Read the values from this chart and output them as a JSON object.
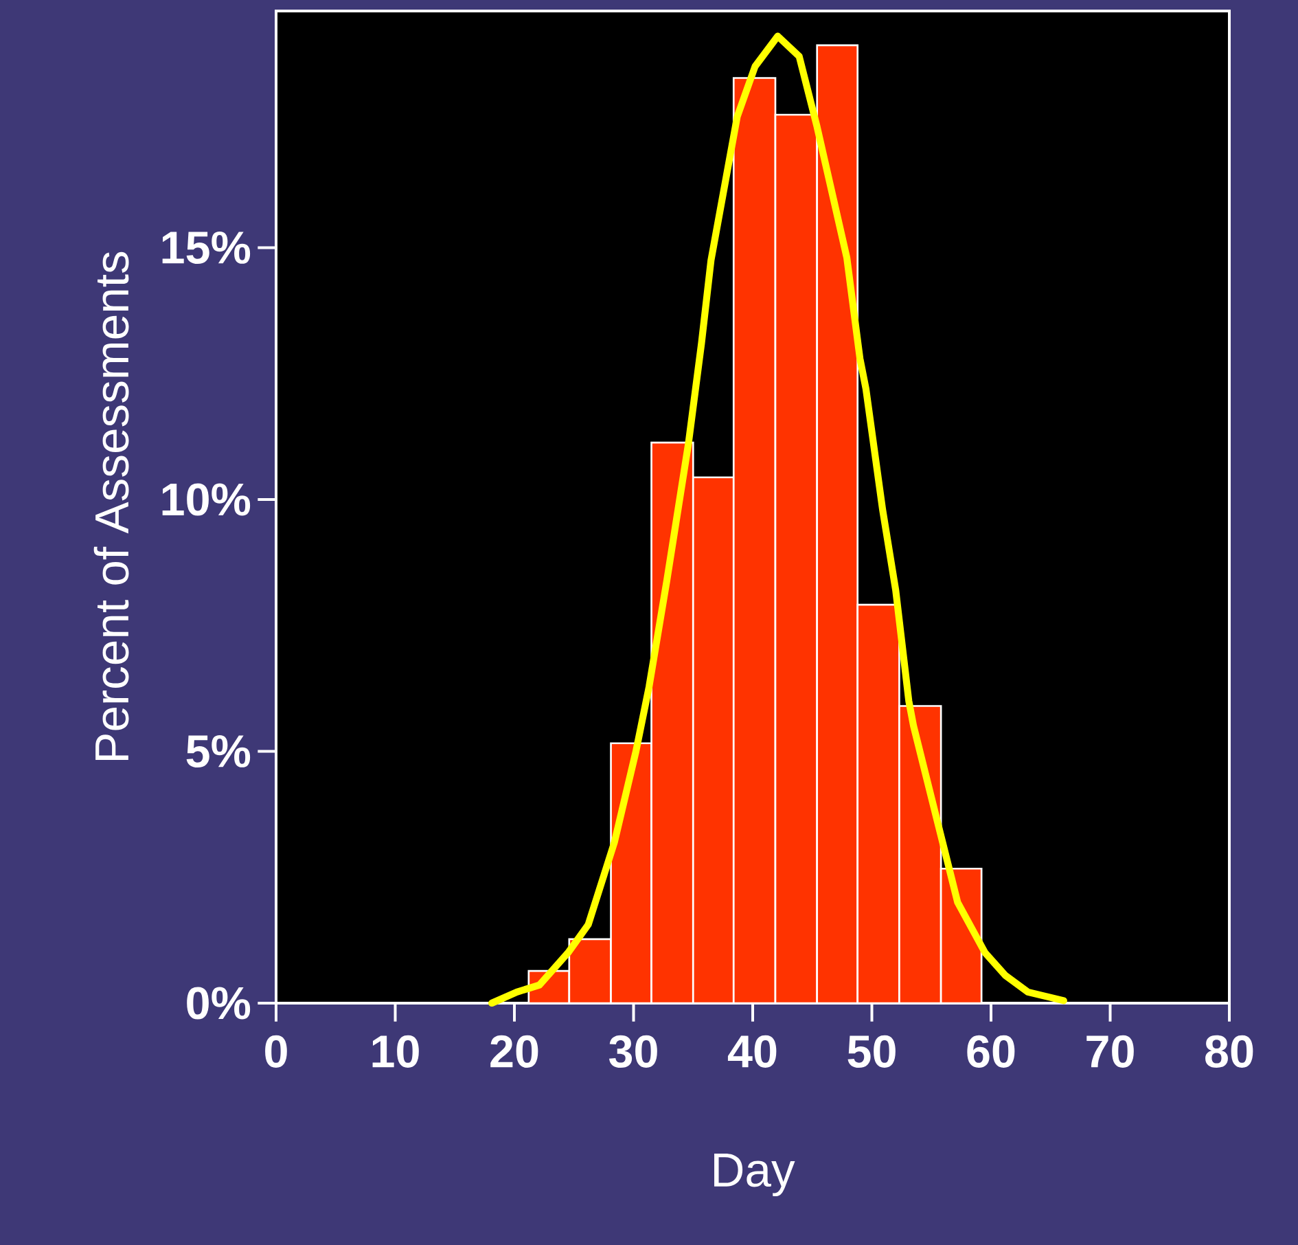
{
  "chart_data": {
    "type": "histogram",
    "xlabel": "Day",
    "ylabel": "Percent of Assessments",
    "xlim": [
      0,
      80
    ],
    "xticks": [
      0,
      10,
      20,
      30,
      40,
      50,
      60,
      70,
      80
    ],
    "ylim": [
      0,
      19.7
    ],
    "yticks": [
      {
        "value": 0,
        "label": "0%"
      },
      {
        "value": 5,
        "label": "5%"
      },
      {
        "value": 10,
        "label": "10%"
      },
      {
        "value": 15,
        "label": "15%"
      }
    ],
    "series": [
      {
        "color": "#ff3300",
        "bins": [
          21.2,
          24.6,
          28.1,
          31.5,
          35.0,
          38.4,
          41.9,
          45.4,
          48.8,
          52.3,
          55.8,
          59.2
        ],
        "values": [
          0.64,
          1.27,
          5.16,
          11.13,
          10.44,
          18.37,
          17.64,
          19.02,
          7.91,
          5.9,
          2.67
        ]
      },
      {
        "type": "line",
        "color": "#ffff00",
        "x": [
          18.1,
          20.2,
          22.1,
          24.5,
          26.2,
          28.4,
          30.2,
          31.3,
          32.8,
          34.6,
          35.7,
          36.5,
          38.7,
          40.2,
          42.1,
          43.9,
          45.4,
          47.9,
          49.0,
          49.5,
          50.9,
          52.0,
          53.1,
          53.5,
          55.4,
          57.2,
          59.5,
          61.2,
          63.1,
          66.1
        ],
        "values": [
          0.0,
          0.22,
          0.36,
          1.0,
          1.56,
          3.2,
          5.0,
          6.28,
          8.4,
          11.1,
          13.1,
          14.75,
          17.6,
          18.6,
          19.2,
          18.8,
          17.4,
          14.8,
          12.8,
          12.2,
          9.8,
          8.2,
          6.0,
          5.5,
          3.7,
          2.0,
          1.0,
          0.55,
          0.22,
          0.05
        ]
      }
    ]
  }
}
